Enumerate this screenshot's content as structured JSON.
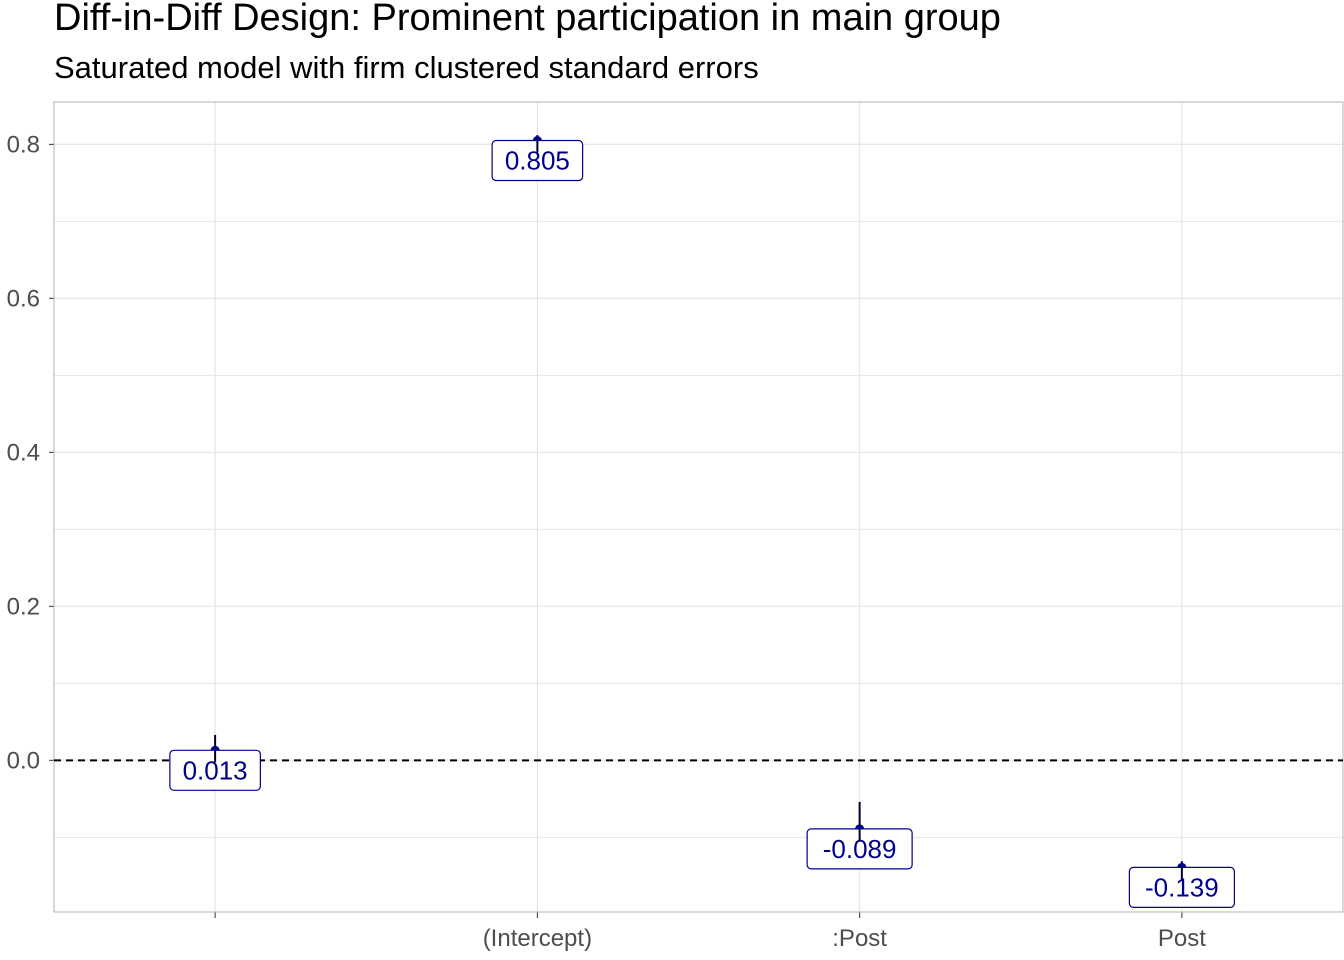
{
  "chart_data": {
    "type": "scatter",
    "title": "Diff-in-Diff Design: Prominent participation in main group",
    "subtitle": "Saturated model with firm clustered standard errors",
    "xlabel": "",
    "ylabel": "",
    "categories": [
      "",
      "(Intercept)",
      ":Post",
      "Post"
    ],
    "estimates": [
      0.013,
      0.805,
      -0.089,
      -0.139
    ],
    "labels": [
      "0.013",
      "0.805",
      "-0.089",
      "-0.139"
    ],
    "ci_low": [
      0.004,
      0.797,
      -0.106,
      -0.148
    ],
    "ci_high": [
      0.033,
      0.812,
      -0.054,
      -0.131
    ],
    "ylim": [
      -0.197,
      0.855
    ],
    "yticks": [
      0.0,
      0.2,
      0.4,
      0.6,
      0.8
    ],
    "ytick_labels": [
      "0.0",
      "0.2",
      "0.4",
      "0.6",
      "0.8"
    ],
    "reference_line": 0.0,
    "grid": true,
    "colors": {
      "point": "#00008b",
      "label_text": "#00008b",
      "label_border": "#00008b",
      "grid": "#e6e6e6",
      "axis_text": "#4d4d4d",
      "reference_line": "#000000"
    }
  }
}
